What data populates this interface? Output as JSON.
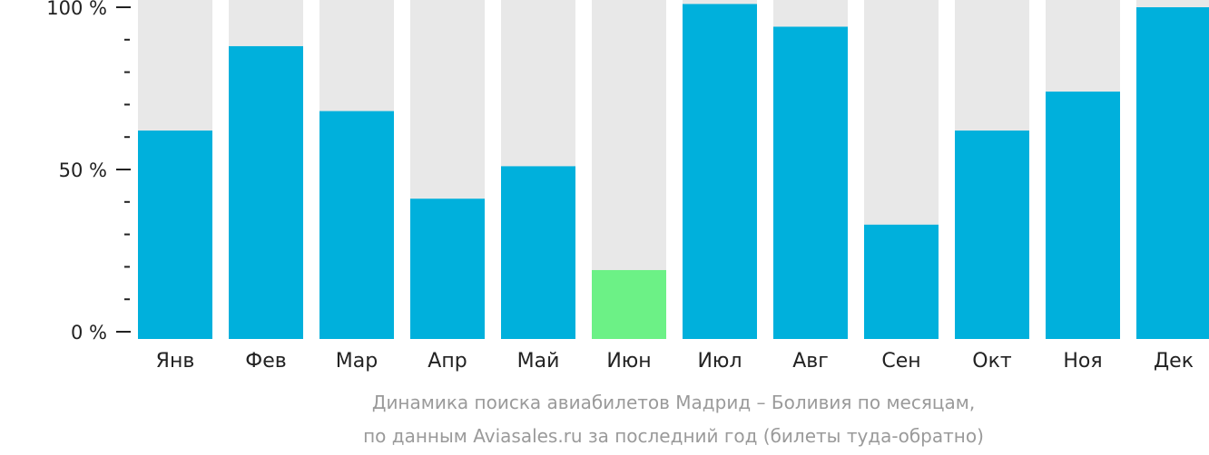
{
  "chart_data": {
    "type": "bar",
    "categories": [
      "Янв",
      "Фев",
      "Мар",
      "Апр",
      "Май",
      "Июн",
      "Июл",
      "Авг",
      "Сен",
      "Окт",
      "Ноя",
      "Дек"
    ],
    "values": [
      62,
      88,
      68,
      41,
      51,
      19,
      101,
      94,
      33,
      62,
      74,
      100
    ],
    "highlight_index": 5,
    "ylim": [
      0,
      100
    ],
    "yticks": [
      {
        "value": 100,
        "label": "100 %"
      },
      {
        "value": 50,
        "label": "50 %"
      },
      {
        "value": 0,
        "label": "0 %"
      }
    ],
    "minor_tick_step": 10,
    "colors": {
      "bar": "#00b0dc",
      "highlight": "#6cf186",
      "track": "#e8e8e8",
      "axis": "#222222"
    },
    "caption": [
      "Динамика поиска авиабилетов Мадрид – Боливия по месяцам,",
      "по данным Aviasales.ru за последний год (билеты туда-обратно)"
    ]
  }
}
